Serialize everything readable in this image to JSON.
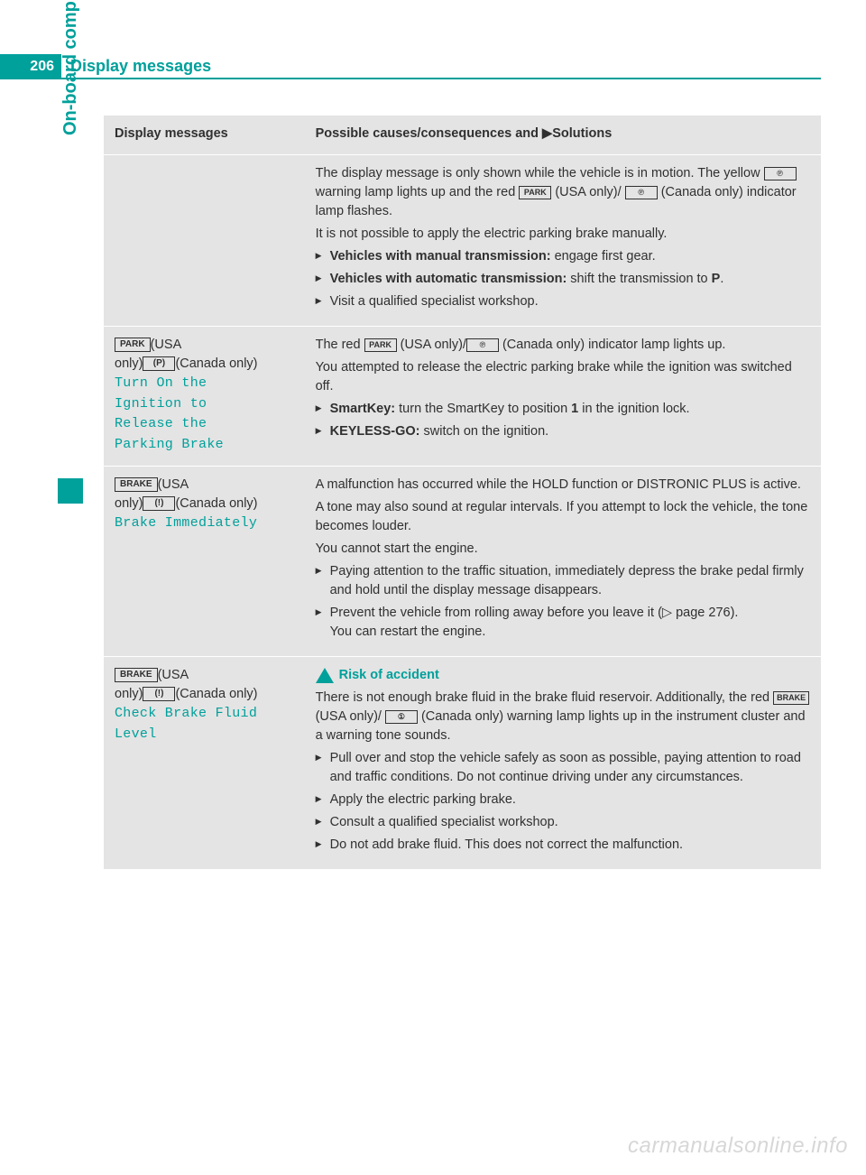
{
  "page": {
    "number": "206",
    "section_title": "Display messages"
  },
  "side_tab": "On-board computer and displays",
  "table": {
    "head_left": "Display messages",
    "head_right_prefix": "Possible causes/consequences and ",
    "head_right_solutions": "Solutions",
    "rows": [
      {
        "left": "",
        "right_paras": [
          "The display message is only shown while the vehicle is in motion. The yellow {icon_p_circle} warning lamp lights up and the red {icon_park} (USA only)/ {icon_p_circle} (Canada only) indicator lamp flashes.",
          "It is not possible to apply the electric parking brake manually."
        ],
        "right_items": [
          "<b>Vehicles with manual transmission:</b> engage first gear.",
          "<b>Vehicles with automatic transmission:</b> shift the transmission to <b>P</b>.",
          "Visit a qualified specialist workshop."
        ]
      },
      {
        "left_icon1": "PARK",
        "left_usa": "(USA",
        "left_only": "only)",
        "left_icon2": "(P)",
        "left_ca": "(Canada only)",
        "left_teal": "Turn On the\nIgnition to\nRelease the\nParking Brake",
        "right_paras": [
          "The red {icon_park} (USA only)/{icon_p_circle} (Canada only) indicator lamp lights up.",
          "You attempted to release the electric parking brake while the ignition was switched off."
        ],
        "right_items": [
          "<b>SmartKey:</b> turn the SmartKey to position <b>1</b> in the ignition lock.",
          "<b>KEYLESS-GO:</b> switch on the ignition."
        ]
      },
      {
        "left_icon1": "BRAKE",
        "left_usa": "(USA",
        "left_only": "only)",
        "left_icon2": "(!)",
        "left_ca": "(Canada only)",
        "left_teal": "Brake Immediately",
        "right_paras": [
          "A malfunction has occurred while the HOLD function or DISTRONIC PLUS is active.",
          "A tone may also sound at regular intervals. If you attempt to lock the vehicle, the tone becomes louder.",
          "You cannot start the engine."
        ],
        "right_items": [
          "Paying attention to the traffic situation, immediately depress the brake pedal firmly and hold until the display message disappears.",
          "Prevent the vehicle from rolling away before you leave it (▷ page 276).<br>You can restart the engine."
        ]
      },
      {
        "left_icon1": "BRAKE",
        "left_usa": "(USA",
        "left_only": "only)",
        "left_icon2": "(!)",
        "left_ca": "(Canada only)",
        "left_teal": "Check Brake Fluid\nLevel",
        "risk_heading": "Risk of accident",
        "right_paras": [
          "There is not enough brake fluid in the brake fluid reservoir. Additionally, the red {icon_brake} (USA only)/ {icon_exclaim} (Canada only) warning lamp lights up in the instrument cluster and a warning tone sounds."
        ],
        "right_items": [
          "Pull over and stop the vehicle safely as soon as possible, paying attention to road and traffic conditions. Do not continue driving under any circumstances.",
          "Apply the electric parking brake.",
          "Consult a qualified specialist workshop.",
          "Do not add brake fluid. This does not correct the malfunction."
        ]
      }
    ]
  },
  "icons": {
    "icon_p_circle": "℗",
    "icon_park": "PARK",
    "icon_brake": "BRAKE",
    "icon_exclaim": "①"
  },
  "watermark": "carmanualsonline.info",
  "colors": {
    "teal": "#00a09b",
    "bg_row": "#e4e4e4",
    "text": "#303030"
  }
}
